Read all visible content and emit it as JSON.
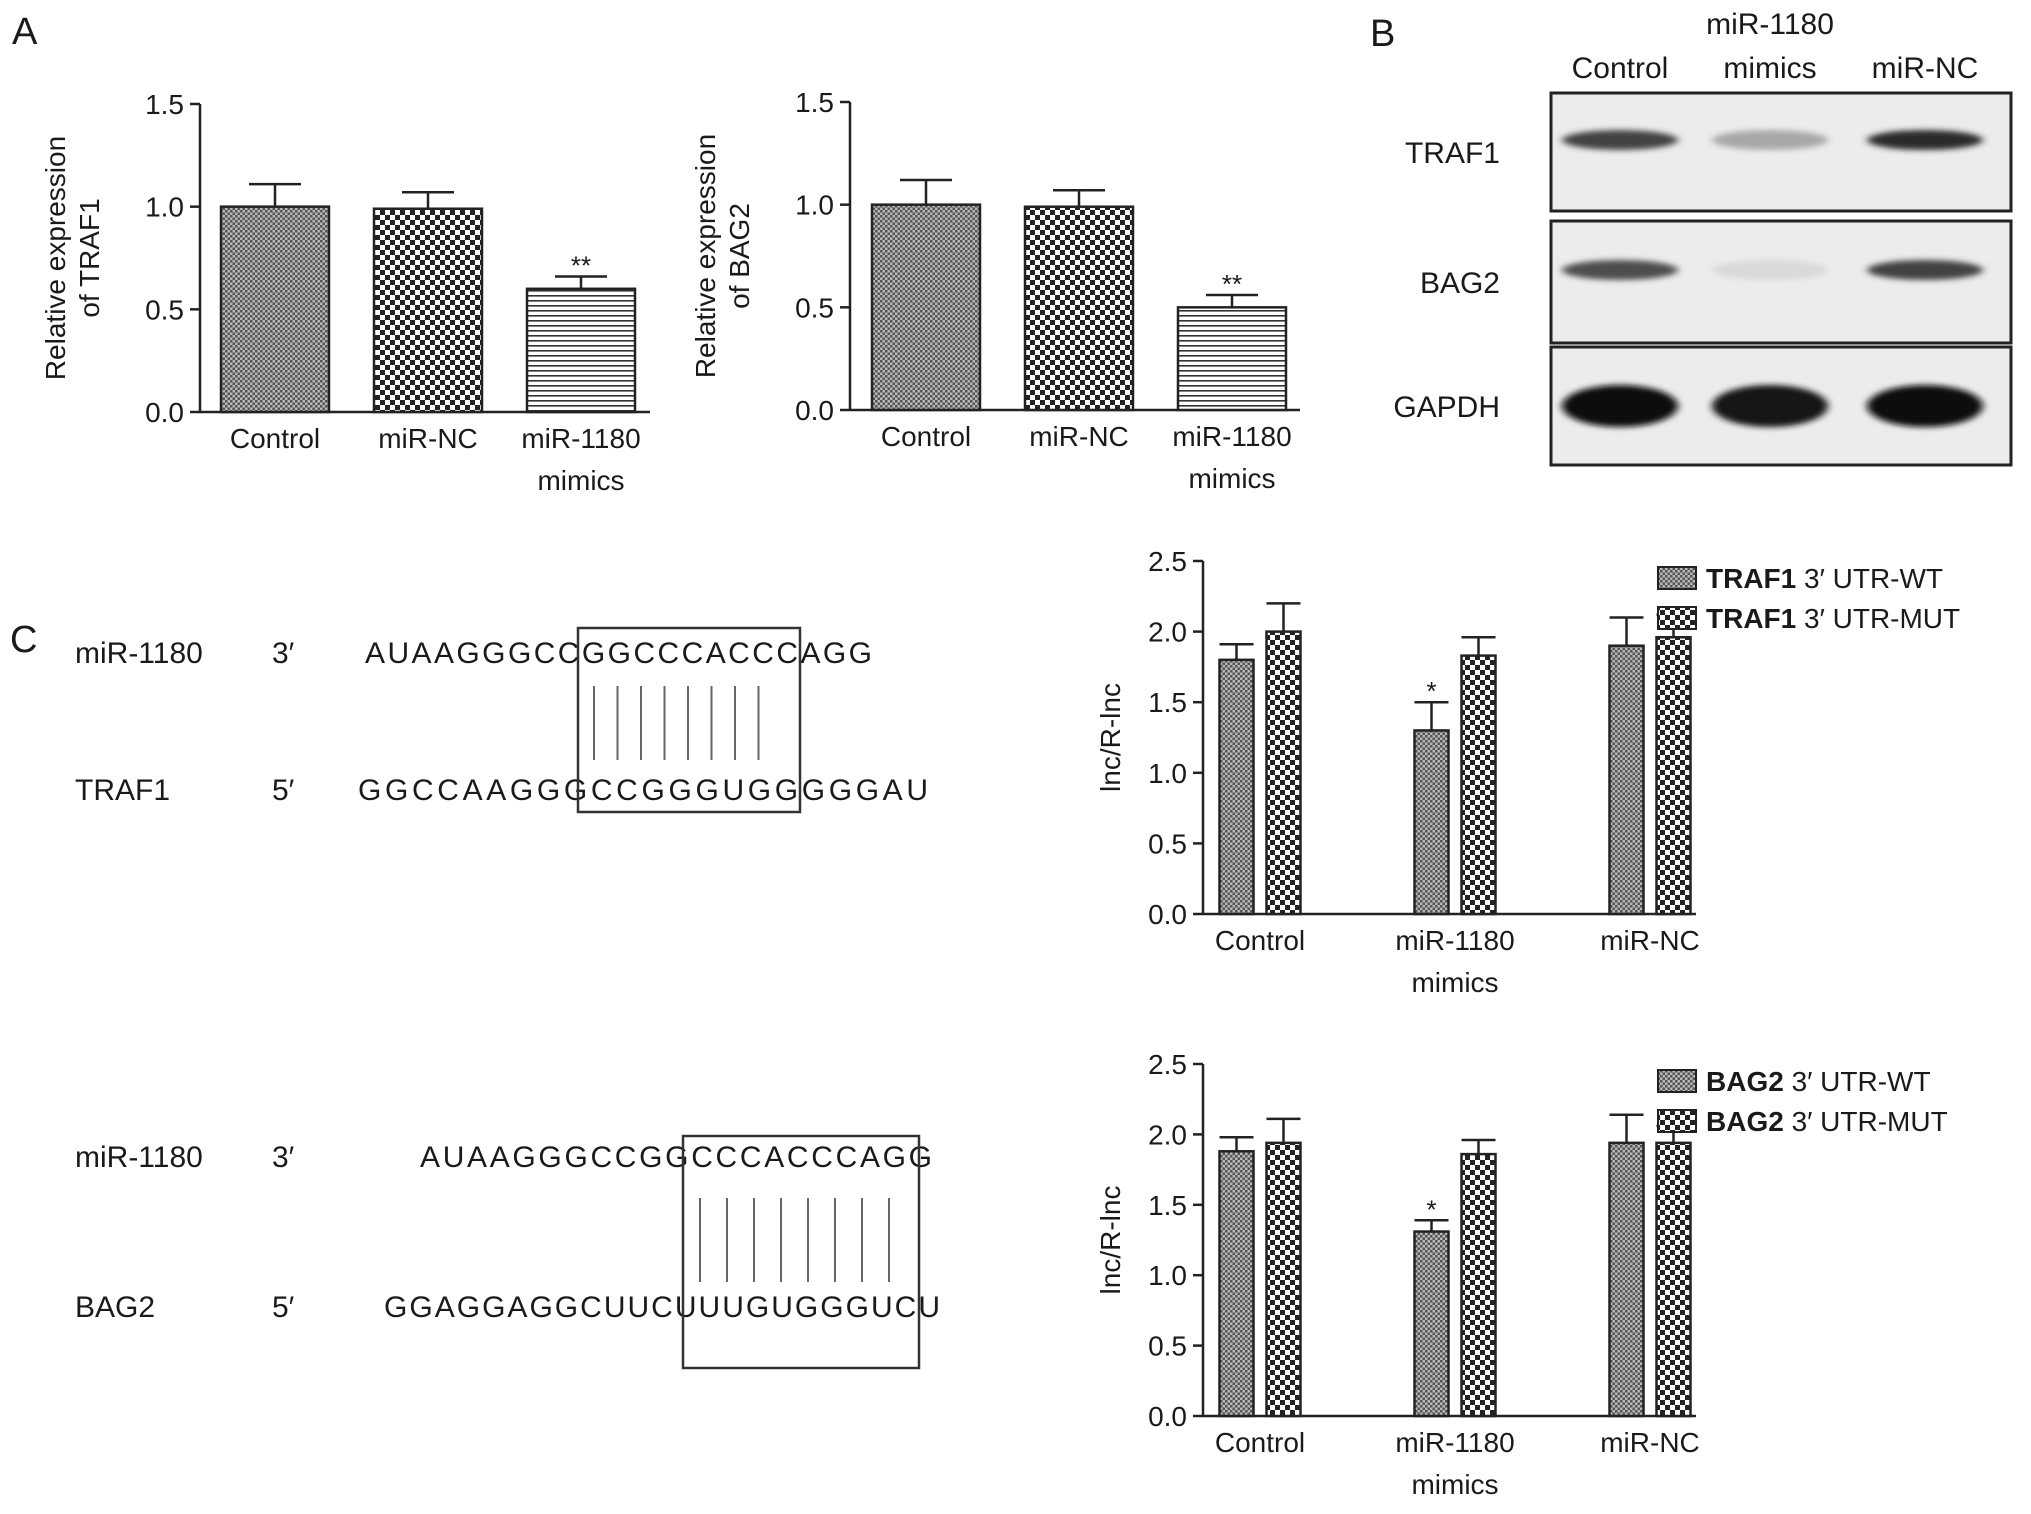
{
  "panels": {
    "a": "A",
    "b": "B",
    "c": "C"
  },
  "chart_data": [
    {
      "id": "chart-a1",
      "type": "bar",
      "ylabel": [
        "Relative expression",
        "of TRAF1"
      ],
      "categories": [
        [
          "Control"
        ],
        [
          "miR-NC"
        ],
        [
          "miR-1180",
          "mimics"
        ]
      ],
      "values": [
        1.0,
        0.99,
        0.6
      ],
      "errors": [
        0.11,
        0.08,
        0.06
      ],
      "significance": [
        "",
        "",
        "**"
      ],
      "patterns": [
        "dense",
        "check",
        "hline"
      ],
      "ylim": [
        0,
        1.5
      ],
      "yticks": [
        0.0,
        0.5,
        1.0,
        1.5
      ],
      "ytick_labels": [
        "0.0",
        "0.5",
        "1.0",
        "1.5"
      ],
      "grid": false
    },
    {
      "id": "chart-a2",
      "type": "bar",
      "ylabel": [
        "Relative expression",
        "of BAG2"
      ],
      "categories": [
        [
          "Control"
        ],
        [
          "miR-NC"
        ],
        [
          "miR-1180",
          "mimics"
        ]
      ],
      "values": [
        1.0,
        0.99,
        0.5
      ],
      "errors": [
        0.12,
        0.08,
        0.06
      ],
      "significance": [
        "",
        "",
        "**"
      ],
      "patterns": [
        "dense",
        "check",
        "hline"
      ],
      "ylim": [
        0,
        1.5
      ],
      "yticks": [
        0.0,
        0.5,
        1.0,
        1.5
      ],
      "ytick_labels": [
        "0.0",
        "0.5",
        "1.0",
        "1.5"
      ],
      "grid": false
    },
    {
      "id": "chart-c1",
      "type": "bar",
      "ylabel": [
        "lnc/R-lnc"
      ],
      "categories": [
        [
          "Control"
        ],
        [
          "miR-1180",
          "mimics"
        ],
        [
          "miR-NC"
        ]
      ],
      "series": [
        {
          "name_bold": "TRAF1",
          "name_rest": "3′ UTR-WT",
          "pattern": "dense",
          "values": [
            1.8,
            1.3,
            1.9
          ],
          "errors": [
            0.11,
            0.2,
            0.2
          ]
        },
        {
          "name_bold": "TRAF1",
          "name_rest": "3′ UTR-MUT",
          "pattern": "check",
          "values": [
            2.0,
            1.83,
            1.96
          ],
          "errors": [
            0.2,
            0.13,
            0.16
          ]
        }
      ],
      "significance": [
        [
          "",
          "*",
          ""
        ],
        [
          "",
          "",
          ""
        ]
      ],
      "ylim": [
        0,
        2.5
      ],
      "yticks": [
        0.0,
        0.5,
        1.0,
        1.5,
        2.0,
        2.5
      ],
      "ytick_labels": [
        "0.0",
        "0.5",
        "1.0",
        "1.5",
        "2.0",
        "2.5"
      ],
      "legend": "top-right",
      "grid": false
    },
    {
      "id": "chart-c2",
      "type": "bar",
      "ylabel": [
        "lnc/R-lnc"
      ],
      "categories": [
        [
          "Control"
        ],
        [
          "miR-1180",
          "mimics"
        ],
        [
          "miR-NC"
        ]
      ],
      "series": [
        {
          "name_bold": "BAG2",
          "name_rest": "3′ UTR-WT",
          "pattern": "dense",
          "values": [
            1.88,
            1.31,
            1.94
          ],
          "errors": [
            0.1,
            0.08,
            0.2
          ]
        },
        {
          "name_bold": "BAG2",
          "name_rest": "3′ UTR-MUT",
          "pattern": "check",
          "values": [
            1.94,
            1.86,
            1.94
          ],
          "errors": [
            0.17,
            0.1,
            0.12
          ]
        }
      ],
      "significance": [
        [
          "",
          "*",
          ""
        ],
        [
          "",
          "",
          ""
        ]
      ],
      "ylim": [
        0,
        2.5
      ],
      "yticks": [
        0.0,
        0.5,
        1.0,
        1.5,
        2.0,
        2.5
      ],
      "ytick_labels": [
        "0.0",
        "0.5",
        "1.0",
        "1.5",
        "2.0",
        "2.5"
      ],
      "legend": "top-right",
      "grid": false
    }
  ],
  "western_blot": {
    "columns": [
      "Control",
      "miR-1180\nmimics",
      "miR-NC"
    ],
    "columns_lines": [
      [
        "Control"
      ],
      [
        "miR-1180",
        "mimics"
      ],
      [
        "miR-NC"
      ]
    ],
    "rows": [
      {
        "label": "TRAF1",
        "intensities": [
          0.75,
          0.3,
          0.85
        ]
      },
      {
        "label": "BAG2",
        "intensities": [
          0.7,
          0.08,
          0.75
        ]
      },
      {
        "label": "GAPDH",
        "intensities": [
          1.0,
          0.95,
          1.0
        ]
      }
    ]
  },
  "alignments": [
    {
      "top": {
        "name": "miR-1180",
        "end": "3′",
        "sequence": "AUAAGGGCCGGCCCACCCAGG"
      },
      "bottom": {
        "name": "TRAF1",
        "end": "5′",
        "sequence": "GGCCAAGGGCCGGGUGGGGGAU"
      },
      "pairs": 8
    },
    {
      "top": {
        "name": "miR-1180",
        "end": "3′",
        "sequence": "AUAAGGGCCGGCCCACCCAGG"
      },
      "bottom": {
        "name": "BAG2",
        "end": "5′",
        "sequence": "GGAGGAGGCUUCUUUGUGGGUCU"
      },
      "pairs": 8
    }
  ]
}
